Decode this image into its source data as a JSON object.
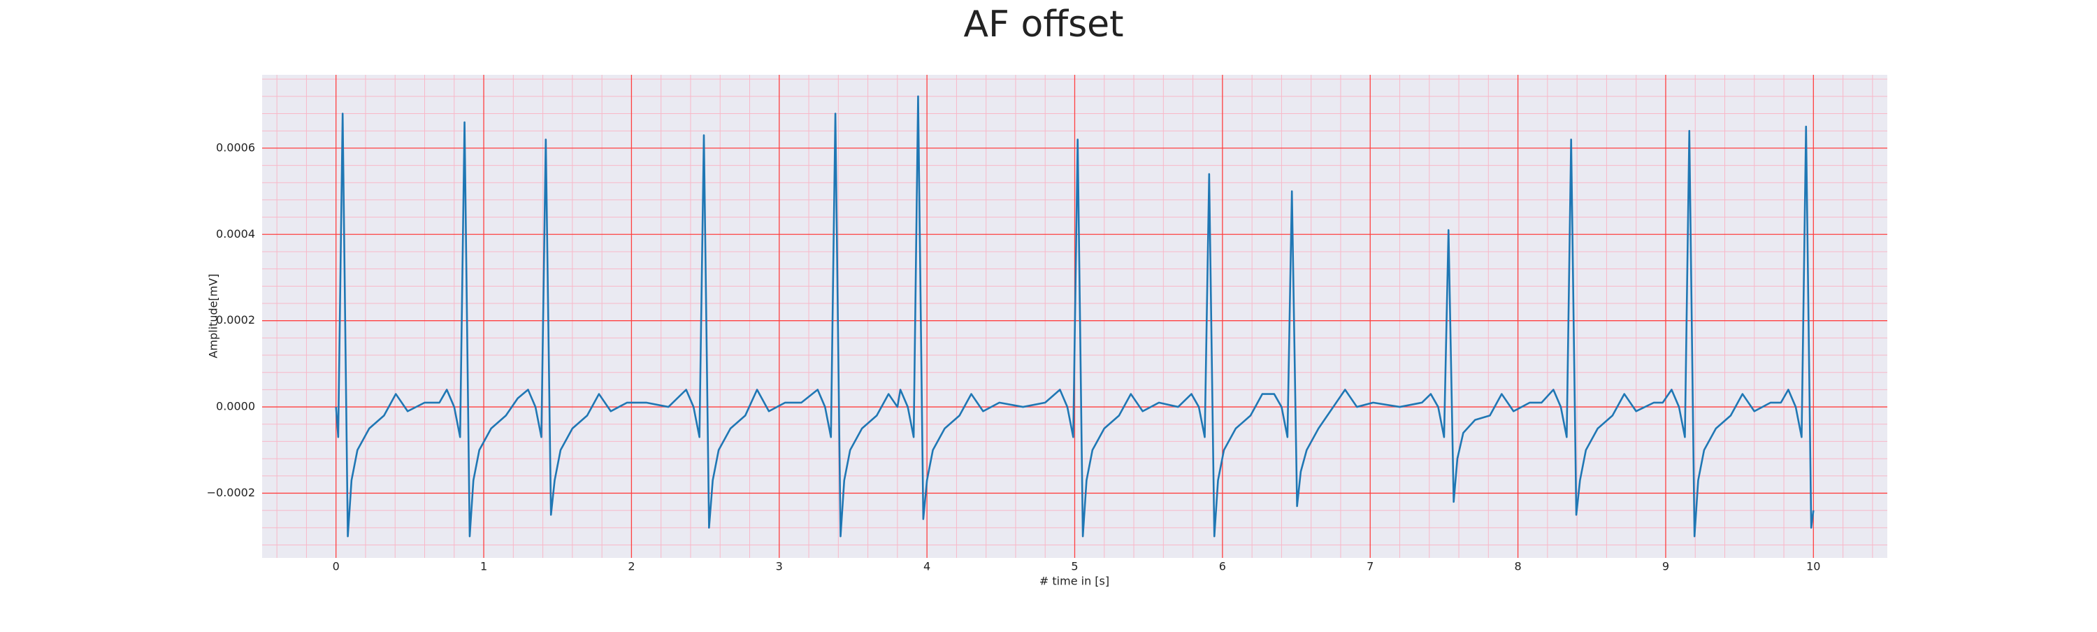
{
  "chart_data": {
    "type": "line",
    "title": "AF offset",
    "xlabel": "# time in [s]",
    "ylabel": "Amplitude[mV]",
    "x": [
      0,
      0.015,
      0.045,
      0.08,
      0.105,
      0.145,
      0.225,
      0.325,
      0.405,
      0.485,
      0.6,
      0.7,
      0.75,
      0.8,
      0.84,
      0.87,
      0.905,
      0.93,
      0.97,
      1.05,
      1.15,
      1.23,
      1.3,
      1.35,
      1.39,
      1.42,
      1.455,
      1.48,
      1.52,
      1.6,
      1.7,
      1.78,
      1.86,
      1.97,
      2.1,
      2.25,
      2.37,
      2.42,
      2.46,
      2.49,
      2.525,
      2.55,
      2.59,
      2.67,
      2.77,
      2.85,
      2.93,
      3.04,
      3.15,
      3.26,
      3.31,
      3.35,
      3.38,
      3.415,
      3.44,
      3.48,
      3.56,
      3.66,
      3.74,
      3.8,
      3.82,
      3.87,
      3.91,
      3.94,
      3.975,
      4.0,
      4.04,
      4.12,
      4.22,
      4.3,
      4.38,
      4.49,
      4.65,
      4.8,
      4.9,
      4.95,
      4.99,
      5.02,
      5.055,
      5.08,
      5.12,
      5.2,
      5.3,
      5.38,
      5.46,
      5.57,
      5.7,
      5.79,
      5.84,
      5.88,
      5.91,
      5.945,
      5.97,
      6.01,
      6.09,
      6.19,
      6.27,
      6.35,
      6.4,
      6.44,
      6.47,
      6.505,
      6.53,
      6.57,
      6.65,
      6.75,
      6.83,
      6.91,
      7.02,
      7.2,
      7.35,
      7.41,
      7.46,
      7.5,
      7.53,
      7.565,
      7.59,
      7.63,
      7.71,
      7.81,
      7.89,
      7.97,
      8.08,
      8.16,
      8.24,
      8.29,
      8.33,
      8.36,
      8.395,
      8.42,
      8.46,
      8.54,
      8.64,
      8.72,
      8.8,
      8.92,
      8.98,
      9.04,
      9.09,
      9.13,
      9.16,
      9.195,
      9.22,
      9.26,
      9.34,
      9.44,
      9.52,
      9.6,
      9.71,
      9.78,
      9.83,
      9.88,
      9.92,
      9.95,
      9.985,
      10.0
    ],
    "series": [
      {
        "color": "#1f77b4",
        "values": [
          0.0,
          -7e-05,
          0.00068,
          -0.0003,
          -0.00017,
          -0.0001,
          -5e-05,
          -2e-05,
          3e-05,
          -1e-05,
          1e-05,
          1e-05,
          4e-05,
          0.0,
          -7e-05,
          0.00066,
          -0.0003,
          -0.00017,
          -0.0001,
          -5e-05,
          -2e-05,
          2e-05,
          4e-05,
          0.0,
          -7e-05,
          0.00062,
          -0.00025,
          -0.00017,
          -0.0001,
          -5e-05,
          -2e-05,
          3e-05,
          -1e-05,
          1e-05,
          1e-05,
          0.0,
          4e-05,
          0.0,
          -7e-05,
          0.00063,
          -0.00028,
          -0.00017,
          -0.0001,
          -5e-05,
          -2e-05,
          4e-05,
          -1e-05,
          1e-05,
          1e-05,
          4e-05,
          0.0,
          -7e-05,
          0.00068,
          -0.0003,
          -0.00017,
          -0.0001,
          -5e-05,
          -2e-05,
          3e-05,
          0.0,
          4e-05,
          0.0,
          -7e-05,
          0.00072,
          -0.00026,
          -0.00017,
          -0.0001,
          -5e-05,
          -2e-05,
          3e-05,
          -1e-05,
          1e-05,
          0.0,
          1e-05,
          4e-05,
          0.0,
          -7e-05,
          0.00062,
          -0.0003,
          -0.00017,
          -0.0001,
          -5e-05,
          -2e-05,
          3e-05,
          -1e-05,
          1e-05,
          0.0,
          3e-05,
          0.0,
          -7e-05,
          0.00054,
          -0.0003,
          -0.00017,
          -0.0001,
          -5e-05,
          -2e-05,
          3e-05,
          3e-05,
          0.0,
          -7e-05,
          0.0005,
          -0.00023,
          -0.00015,
          -0.0001,
          -5e-05,
          0.0,
          4e-05,
          0.0,
          1e-05,
          0.0,
          1e-05,
          3e-05,
          0.0,
          -7e-05,
          0.00041,
          -0.00022,
          -0.00012,
          -6e-05,
          -3e-05,
          -2e-05,
          3e-05,
          -1e-05,
          1e-05,
          1e-05,
          4e-05,
          0.0,
          -7e-05,
          0.00062,
          -0.00025,
          -0.00017,
          -0.0001,
          -5e-05,
          -2e-05,
          3e-05,
          -1e-05,
          1e-05,
          1e-05,
          4e-05,
          0.0,
          -7e-05,
          0.00064,
          -0.0003,
          -0.00017,
          -0.0001,
          -5e-05,
          -2e-05,
          3e-05,
          -1e-05,
          1e-05,
          1e-05,
          4e-05,
          0.0,
          -7e-05,
          0.00065,
          -0.00028,
          -0.00024
        ]
      }
    ],
    "xlim": [
      -0.5,
      10.5
    ],
    "xticks": [
      0,
      1,
      2,
      3,
      4,
      5,
      6,
      7,
      8,
      9,
      10
    ],
    "ylim": [
      -0.00035,
      0.00077
    ],
    "yticks": [
      {
        "value": -0.0002,
        "label": "−0.0002"
      },
      {
        "value": 0,
        "label": "0.0000"
      },
      {
        "value": 0.0002,
        "label": "0.0002"
      },
      {
        "value": 0.0004,
        "label": "0.0004"
      },
      {
        "value": 0.0006,
        "label": "0.0006"
      }
    ],
    "grid": true,
    "grid_color": "#ff4040",
    "minor_grid": true,
    "minor_grid_color": "#f8b8c8",
    "background": "#eaeaf2"
  }
}
